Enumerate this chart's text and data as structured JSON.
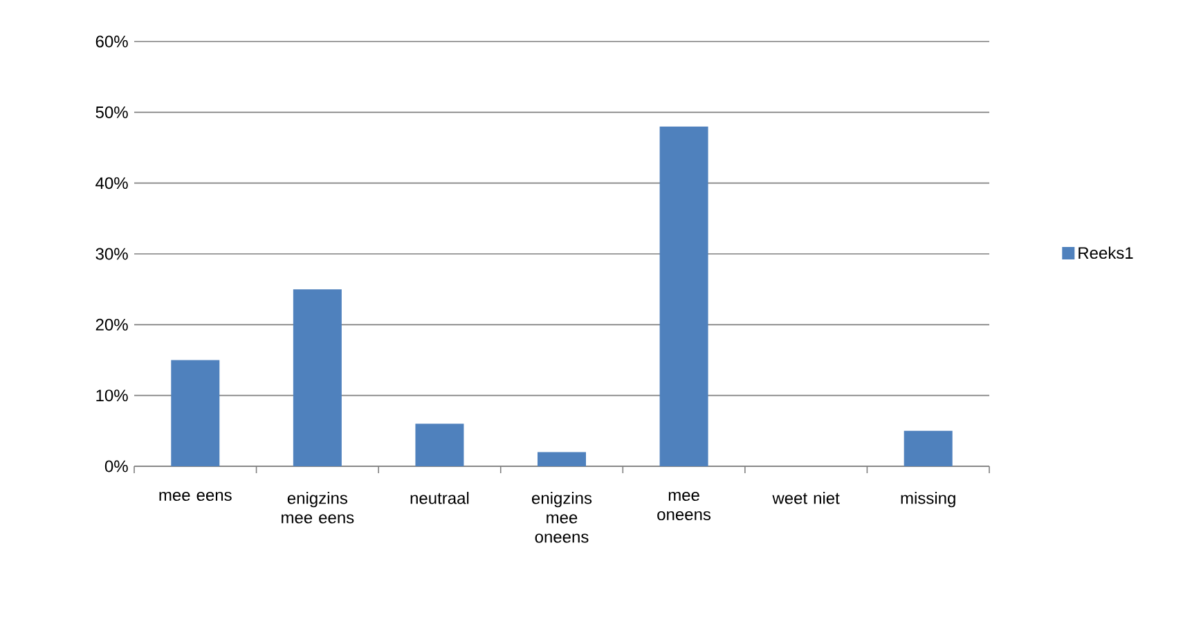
{
  "chart_data": {
    "type": "bar",
    "categories": [
      "mee eens",
      "enigzins mee eens",
      "neutraal",
      "enigzins mee oneens",
      "mee oneens",
      "weet niet",
      "missing"
    ],
    "series": [
      {
        "name": "Reeks1",
        "color": "#4f81bd",
        "values": [
          15,
          25,
          6,
          2,
          48,
          0,
          5
        ]
      }
    ],
    "ylim": [
      0,
      60
    ],
    "yticks": [
      {
        "value": 0,
        "label": "0%"
      },
      {
        "value": 10,
        "label": "10%"
      },
      {
        "value": 20,
        "label": "20%"
      },
      {
        "value": 30,
        "label": "30%"
      },
      {
        "value": 40,
        "label": "40%"
      },
      {
        "value": 50,
        "label": "50%"
      },
      {
        "value": 60,
        "label": "60%"
      }
    ],
    "grid": "y",
    "legend": "right"
  }
}
